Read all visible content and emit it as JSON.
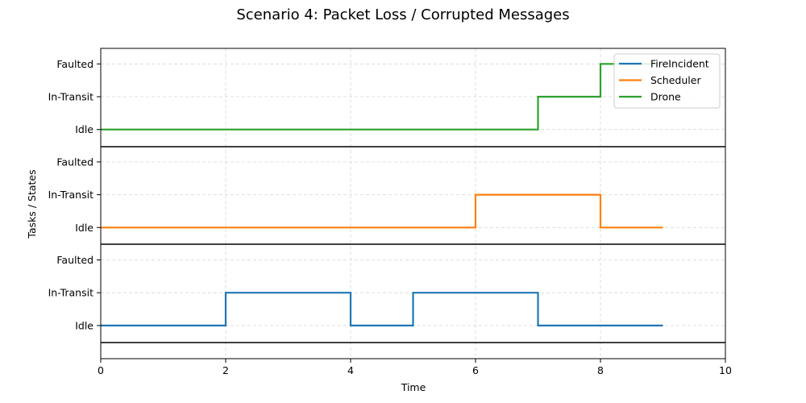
{
  "chart_data": {
    "type": "line",
    "title": "Scenario 4: Packet Loss / Corrupted Messages",
    "xlabel": "Time",
    "ylabel": "Tasks / States",
    "xlim": [
      0,
      10
    ],
    "x_ticks": [
      "0",
      "2",
      "4",
      "6",
      "8",
      "10"
    ],
    "x_tick_values": [
      0,
      2,
      4,
      6,
      8,
      10
    ],
    "state_levels": [
      "Idle",
      "In-Transit",
      "Faulted"
    ],
    "step_style": "post",
    "grid": true,
    "legend_position": "top-right",
    "series": [
      {
        "name": "FireIncident",
        "color": "#1f77b4",
        "lane": 0,
        "x": [
          0,
          2,
          4,
          5,
          7,
          9
        ],
        "states": [
          "Idle",
          "In-Transit",
          "Idle",
          "In-Transit",
          "Idle",
          "Idle"
        ]
      },
      {
        "name": "Scheduler",
        "color": "#ff7f0e",
        "lane": 1,
        "x": [
          0,
          6,
          8,
          9
        ],
        "states": [
          "Idle",
          "In-Transit",
          "Idle",
          "Idle"
        ]
      },
      {
        "name": "Drone",
        "color": "#2ca02c",
        "lane": 2,
        "x": [
          0,
          7,
          8,
          9
        ],
        "states": [
          "Idle",
          "In-Transit",
          "Faulted",
          "Faulted"
        ]
      }
    ]
  }
}
